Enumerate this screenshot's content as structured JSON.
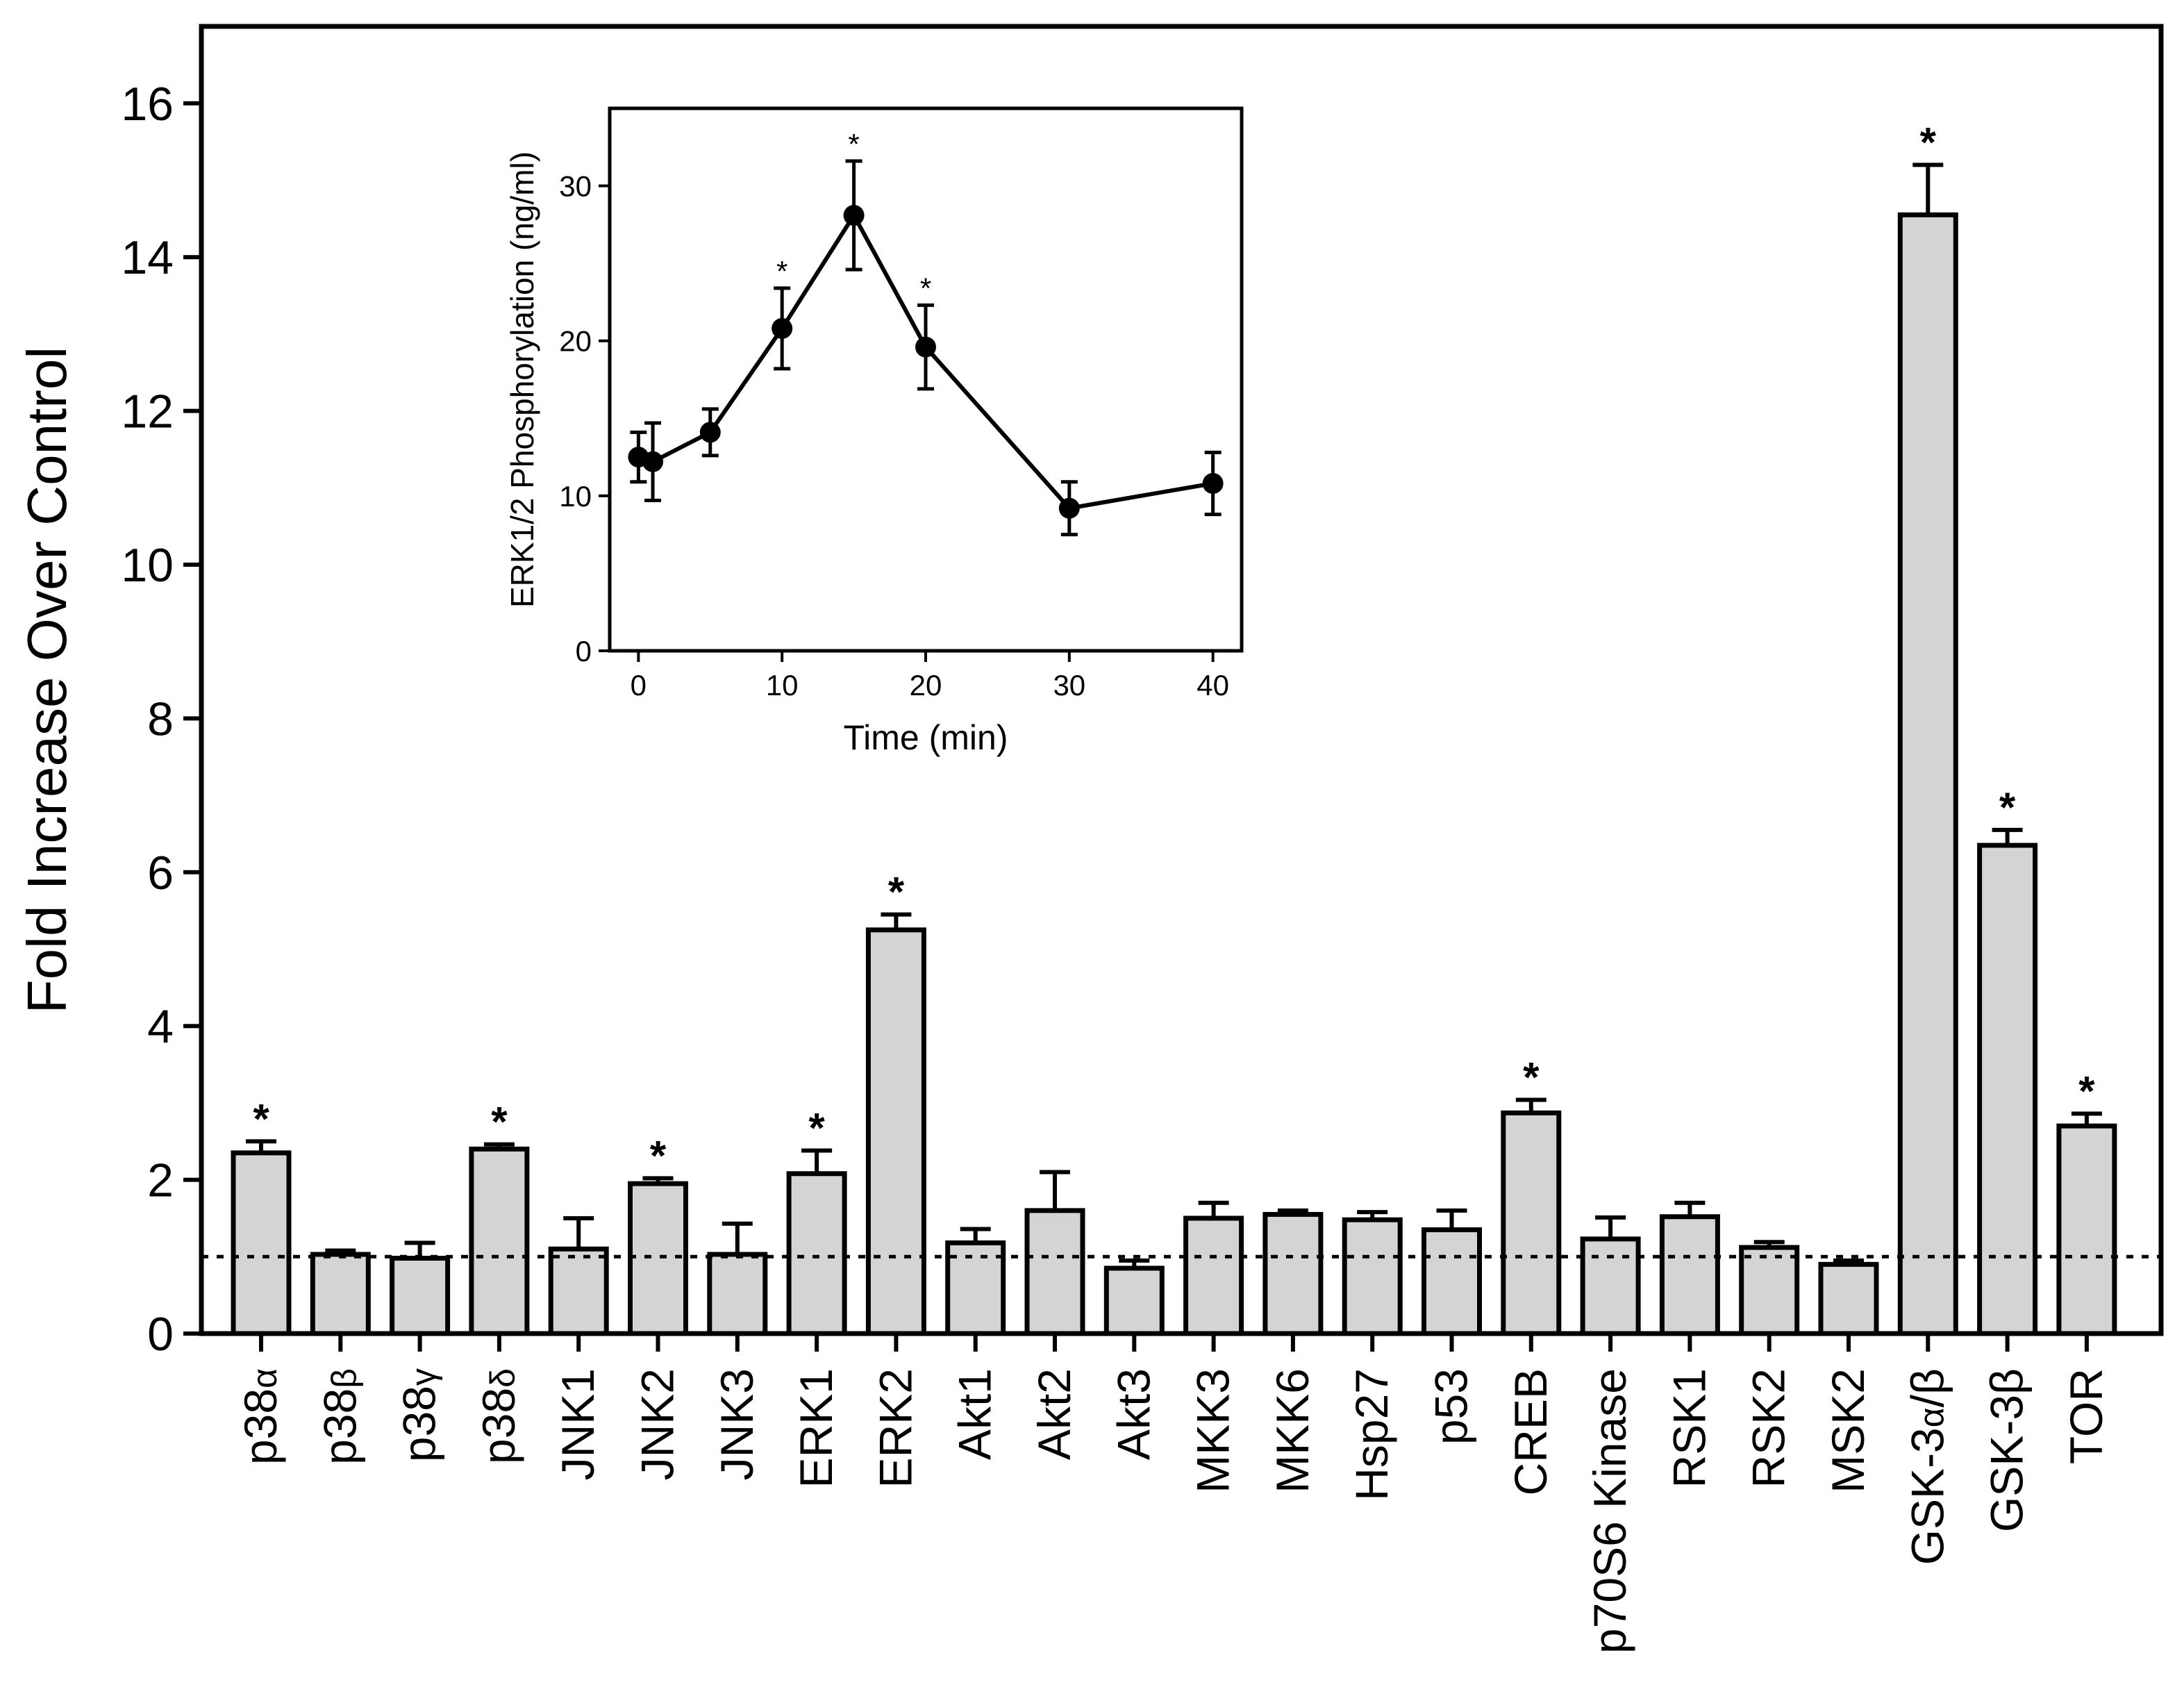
{
  "chart_data": [
    {
      "type": "bar",
      "ylabel": "Fold Increase Over Control",
      "xlabel": "",
      "ylim": [
        0,
        16
      ],
      "yticks": [
        0,
        2,
        4,
        6,
        8,
        10,
        12,
        14,
        16
      ],
      "reference_line": 1.0,
      "colors": {
        "bar_fill": "#d4d4d4",
        "stroke": "#000000"
      },
      "categories": [
        {
          "base": "p38",
          "greek": "α"
        },
        {
          "base": "p38",
          "greek": "β"
        },
        {
          "base": "p38",
          "greek": "γ"
        },
        {
          "base": "p38",
          "greek": "δ"
        },
        {
          "base": "JNK1"
        },
        {
          "base": "JNK2"
        },
        {
          "base": "JNK3"
        },
        {
          "base": "ERK1"
        },
        {
          "base": "ERK2"
        },
        {
          "base": "Akt1"
        },
        {
          "base": "Akt2"
        },
        {
          "base": "Akt3"
        },
        {
          "base": "MKK3"
        },
        {
          "base": "MKK6"
        },
        {
          "base": "Hsp27"
        },
        {
          "base": "p53"
        },
        {
          "base": "CREB"
        },
        {
          "base": "p70S6 Kinase"
        },
        {
          "base": "RSK1"
        },
        {
          "base": "RSK2"
        },
        {
          "base": "MSK2"
        },
        {
          "base": "GSK-3",
          "greek": "α",
          "suffix": "/β"
        },
        {
          "base": "GSK-3β"
        },
        {
          "base": "TOR"
        }
      ],
      "values": [
        2.35,
        1.03,
        0.98,
        2.4,
        1.1,
        1.95,
        1.03,
        2.08,
        5.25,
        1.18,
        1.6,
        0.85,
        1.5,
        1.55,
        1.48,
        1.35,
        2.87,
        1.23,
        1.52,
        1.12,
        0.9,
        14.55,
        6.35,
        2.7
      ],
      "errors": [
        0.15,
        0.05,
        0.2,
        0.06,
        0.4,
        0.07,
        0.4,
        0.3,
        0.2,
        0.18,
        0.5,
        0.1,
        0.2,
        0.05,
        0.1,
        0.25,
        0.17,
        0.28,
        0.18,
        0.07,
        0.05,
        0.65,
        0.2,
        0.16
      ],
      "significant": [
        true,
        false,
        false,
        true,
        false,
        true,
        false,
        true,
        true,
        false,
        false,
        false,
        false,
        false,
        false,
        false,
        true,
        false,
        false,
        false,
        false,
        true,
        true,
        true
      ],
      "significance_mark": "*"
    },
    {
      "type": "line",
      "title": "",
      "xlabel": "Time  (min)",
      "ylabel": "ERK1/2 Phosphorylation (ng/ml)",
      "xlim": [
        -2,
        42
      ],
      "ylim": [
        0,
        35
      ],
      "xticks": [
        0,
        10,
        20,
        30,
        40
      ],
      "yticks": [
        0,
        10,
        20,
        30
      ],
      "x": [
        0,
        1,
        5,
        10,
        15,
        20,
        30,
        40
      ],
      "y": [
        12.5,
        12.2,
        14.1,
        20.8,
        28.1,
        19.6,
        9.2,
        10.8
      ],
      "errors": [
        1.6,
        2.5,
        1.5,
        2.6,
        3.5,
        2.7,
        1.7,
        2.0
      ],
      "significant": [
        false,
        false,
        false,
        true,
        true,
        true,
        false,
        false
      ],
      "significance_mark": "*"
    }
  ]
}
